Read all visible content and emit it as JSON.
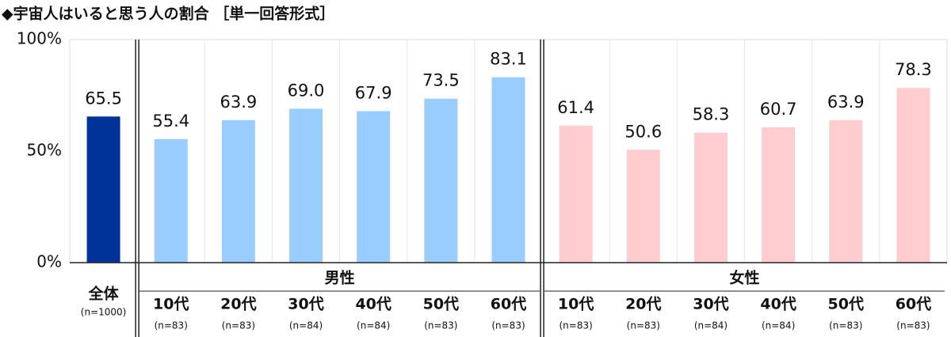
{
  "chart_data": {
    "type": "bar",
    "title": "◆宇宙人はいると思う人の割合 ［単一回答形式］",
    "ylim": [
      0,
      100
    ],
    "yticks": [
      {
        "value": 0,
        "label": "0%"
      },
      {
        "value": 50,
        "label": "50%"
      },
      {
        "value": 100,
        "label": "100%"
      }
    ],
    "groups": [
      {
        "name": "全体",
        "color": "#003399",
        "n": [
          "(n=1000)"
        ],
        "values": [
          65.5
        ],
        "value_labels": [
          "65.5"
        ]
      },
      {
        "name": "男性",
        "color": "#99ccff",
        "categories": [
          "10代",
          "20代",
          "30代",
          "40代",
          "50代",
          "60代"
        ],
        "n": [
          "(n=83)",
          "(n=83)",
          "(n=84)",
          "(n=84)",
          "(n=83)",
          "(n=83)"
        ],
        "values": [
          55.4,
          63.9,
          69.0,
          67.9,
          73.5,
          83.1
        ],
        "value_labels": [
          "55.4",
          "63.9",
          "69.0",
          "67.9",
          "73.5",
          "83.1"
        ]
      },
      {
        "name": "女性",
        "color": "#ffccd0",
        "categories": [
          "10代",
          "20代",
          "30代",
          "40代",
          "50代",
          "60代"
        ],
        "n": [
          "(n=83)",
          "(n=83)",
          "(n=84)",
          "(n=84)",
          "(n=83)",
          "(n=83)"
        ],
        "values": [
          61.4,
          50.6,
          58.3,
          60.7,
          63.9,
          78.3
        ],
        "value_labels": [
          "61.4",
          "50.6",
          "58.3",
          "60.7",
          "63.9",
          "78.3"
        ]
      }
    ]
  }
}
